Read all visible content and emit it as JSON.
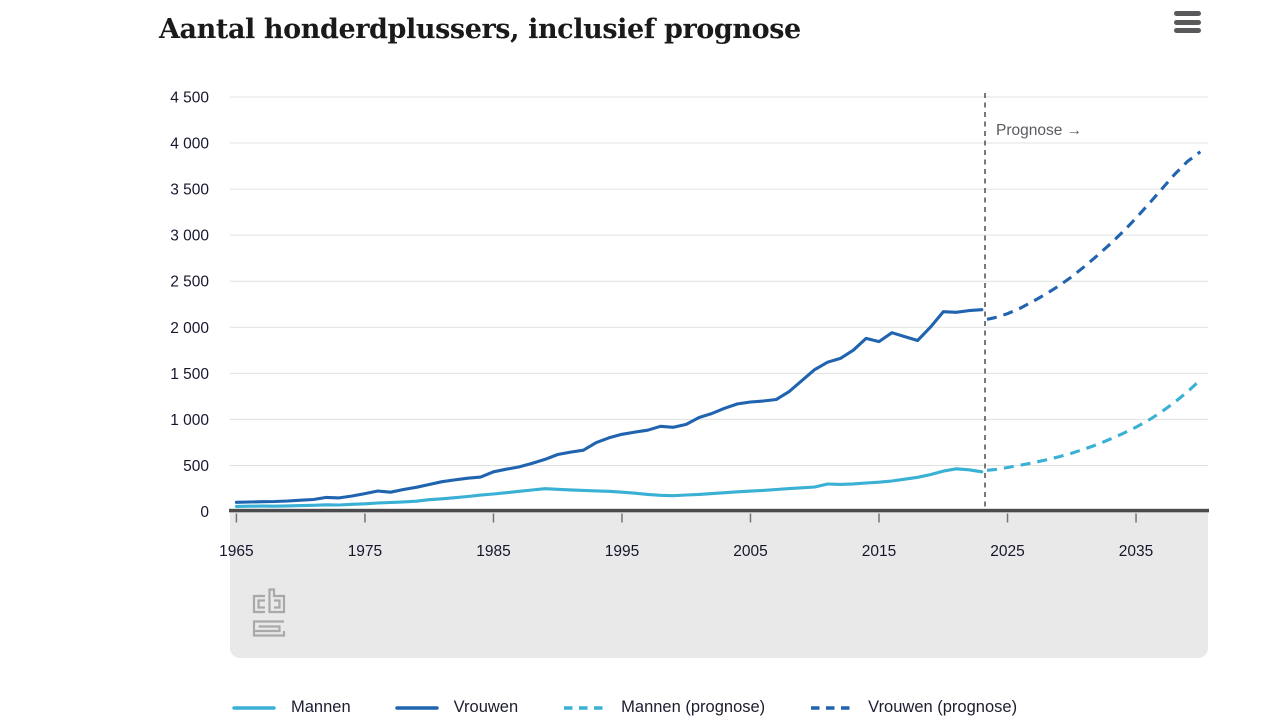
{
  "toolbar": {
    "menu_icon": "hamburger"
  },
  "chart_data": {
    "type": "line",
    "title": "Aantal honderdplussers, inclusief prognose",
    "xlabel": "",
    "ylabel": "",
    "ylim": [
      0,
      4500
    ],
    "xlim": [
      1964.5,
      2040.6
    ],
    "grid": true,
    "legend_position": "bottom",
    "ytick_values": [
      0,
      500,
      1000,
      1500,
      2000,
      2500,
      3000,
      3500,
      4000,
      4500
    ],
    "ytick_labels": [
      "0",
      "500",
      "1 000",
      "1 500",
      "2 000",
      "2 500",
      "3 000",
      "3 500",
      "4 000",
      "4 500"
    ],
    "xtick_values": [
      1965,
      1975,
      1985,
      1995,
      2005,
      2015,
      2025,
      2035
    ],
    "xtick_labels": [
      "1965",
      "1975",
      "1985",
      "1995",
      "2005",
      "2015",
      "2025",
      "2035"
    ],
    "annotation": {
      "text": "Prognose →",
      "x_year": 2023.25
    },
    "colors": {
      "mannen": "#39b0d4",
      "vrouwen": "#2064b0",
      "grid": "#e0e0e0",
      "axis": "#4b4b4d",
      "tick": "#757575",
      "axis_text": "#16162e",
      "annotation_line": "#4c4c4c",
      "annotation_text": "#5b5b60",
      "band_bg": "#e9e9e9",
      "legend_text": "#1d1d30"
    },
    "series": [
      {
        "name": "Mannen",
        "slug": "mannen",
        "color": "#39b0d4",
        "dashed": false,
        "x_start": 1965,
        "x_step": 1,
        "y": [
          55,
          57,
          59,
          58,
          61,
          64,
          67,
          73,
          71,
          78,
          84,
          92,
          98,
          104,
          112,
          128,
          138,
          150,
          163,
          178,
          190,
          204,
          219,
          233,
          248,
          241,
          234,
          229,
          224,
          219,
          209,
          199,
          186,
          176,
          172,
          179,
          186,
          194,
          204,
          214,
          221,
          229,
          239,
          249,
          257,
          266,
          299,
          294,
          300,
          309,
          318,
          331,
          351,
          371,
          401,
          439,
          464,
          453,
          431
        ]
      },
      {
        "name": "Vrouwen",
        "slug": "vrouwen",
        "color": "#2064b0",
        "dashed": false,
        "x_start": 1965,
        "x_step": 1,
        "y": [
          100,
          103,
          106,
          109,
          114,
          123,
          130,
          153,
          148,
          168,
          194,
          223,
          209,
          239,
          263,
          293,
          323,
          343,
          361,
          374,
          431,
          459,
          484,
          522,
          566,
          619,
          645,
          665,
          748,
          800,
          838,
          862,
          883,
          925,
          914,
          946,
          1021,
          1064,
          1121,
          1168,
          1189,
          1200,
          1216,
          1301,
          1421,
          1541,
          1621,
          1662,
          1751,
          1879,
          1844,
          1941,
          1899,
          1856,
          2001,
          2169,
          2163,
          2181,
          2191
        ]
      },
      {
        "name": "Mannen (prognose)",
        "slug": "mannen-prognose",
        "color": "#39b0d4",
        "dashed": true,
        "x": [
          2023.4,
          2024,
          2025,
          2026,
          2027,
          2028,
          2029,
          2030,
          2031,
          2032,
          2033,
          2034,
          2035,
          2036,
          2037,
          2038,
          2039,
          2040
        ],
        "y": [
          447,
          455,
          478,
          503,
          530,
          560,
          594,
          633,
          678,
          729,
          786,
          848,
          915,
          993,
          1082,
          1185,
          1300,
          1428
        ]
      },
      {
        "name": "Vrouwen (prognose)",
        "slug": "vrouwen-prognose",
        "color": "#2064b0",
        "dashed": true,
        "x": [
          2023.4,
          2024,
          2025,
          2026,
          2027,
          2028,
          2029,
          2030,
          2031,
          2032,
          2033,
          2034,
          2035,
          2036,
          2037,
          2038,
          2039,
          2040
        ],
        "y": [
          2085,
          2104,
          2147,
          2208,
          2282,
          2362,
          2450,
          2549,
          2661,
          2780,
          2905,
          3040,
          3185,
          3340,
          3500,
          3660,
          3800,
          3905
        ]
      }
    ]
  }
}
